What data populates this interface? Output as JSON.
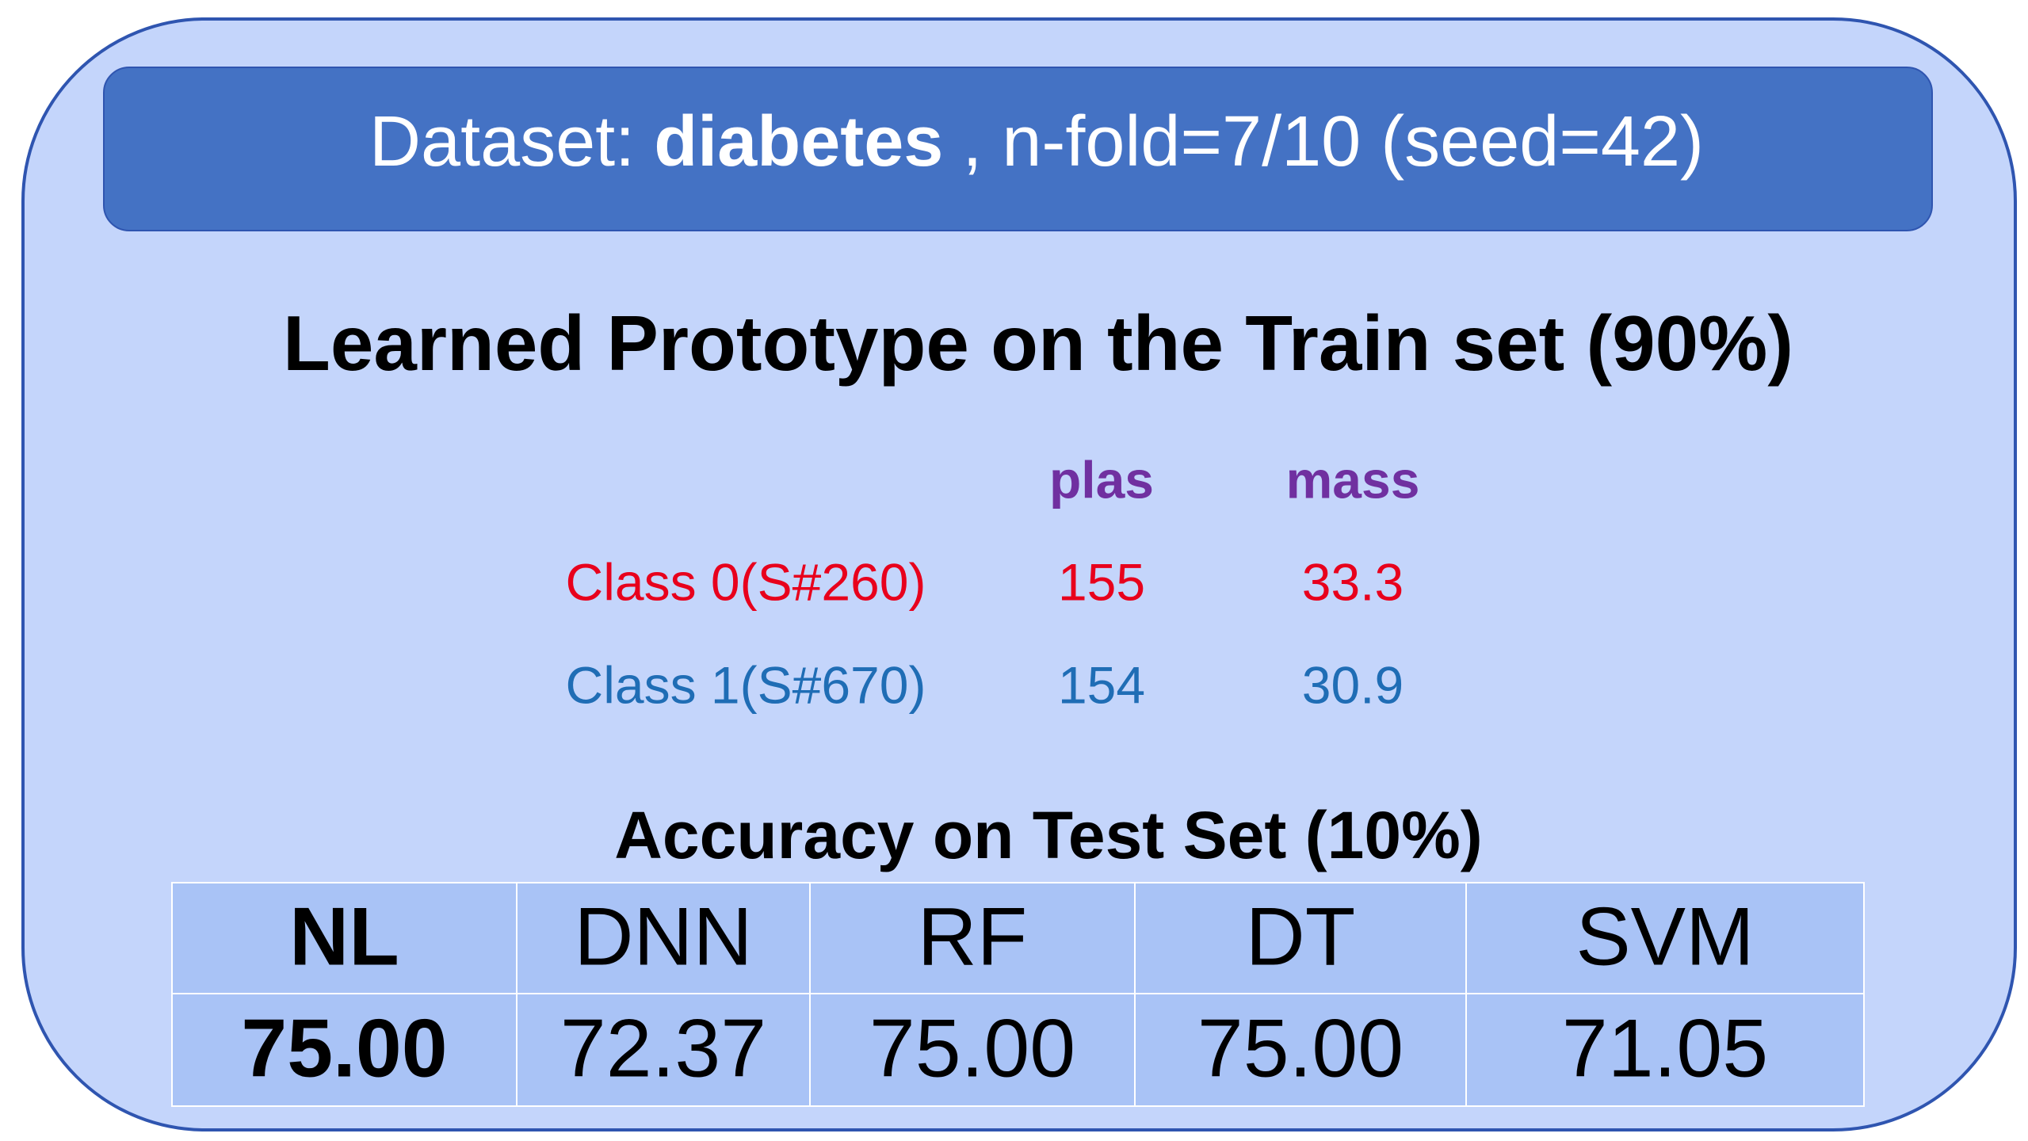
{
  "header": {
    "prefix": "Dataset:",
    "dataset": "diabetes",
    "suffix": ", n-fold=7/10 (seed=42)"
  },
  "prototype": {
    "title": "Learned Prototype on the Train set (90%)",
    "columns": [
      "plas",
      "mass"
    ],
    "rows": [
      {
        "label": "Class 0(S#260)",
        "values": [
          155,
          33.3
        ]
      },
      {
        "label": "Class 1(S#670)",
        "values": [
          154,
          30.9
        ]
      }
    ]
  },
  "accuracy": {
    "title": "Accuracy on Test Set (10%)",
    "headers": [
      "NL",
      "DNN",
      "RF",
      "DT",
      "SVM"
    ],
    "values": [
      "75.00",
      "72.37",
      "75.00",
      "75.00",
      "71.05"
    ]
  }
}
